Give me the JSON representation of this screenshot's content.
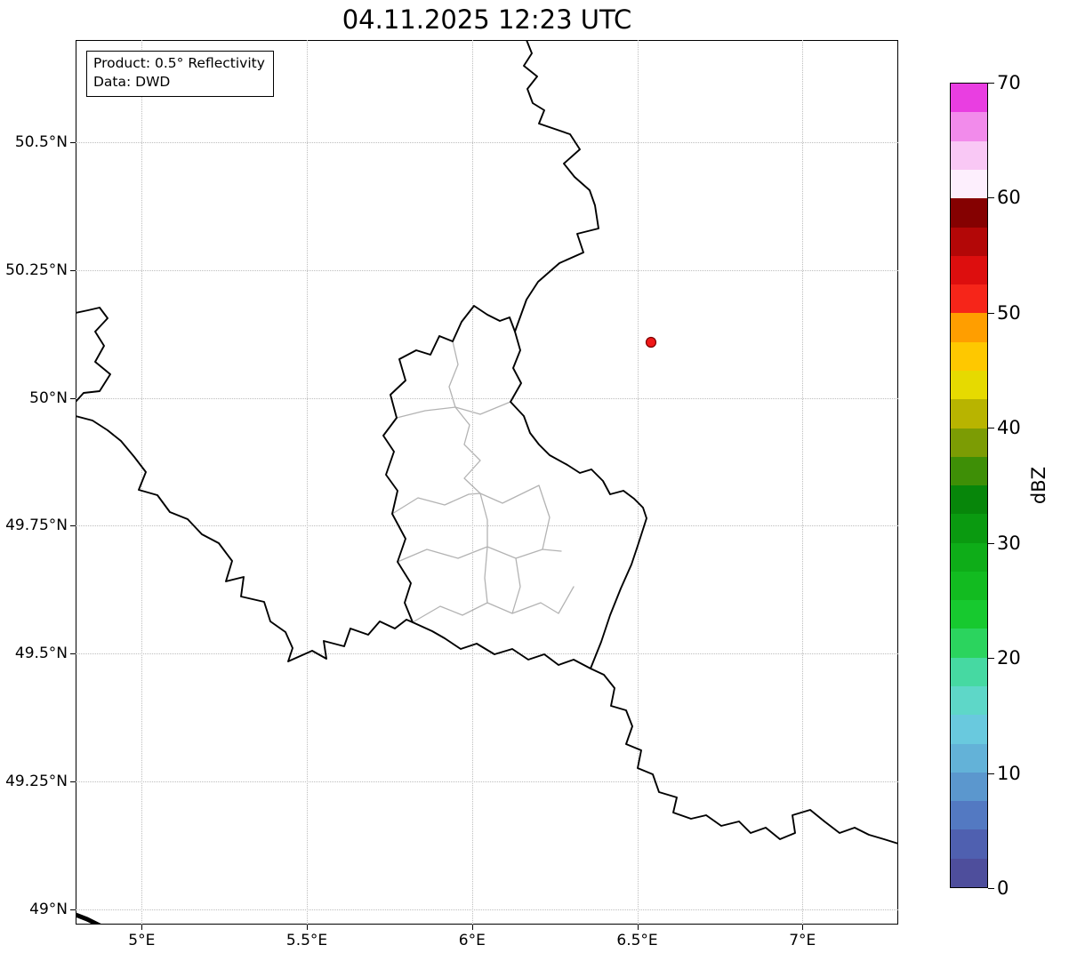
{
  "title": "04.11.2025 12:23 UTC",
  "annotation": {
    "product": "Product: 0.5° Reflectivity",
    "data_source": "Data: DWD"
  },
  "axes": {
    "xlim": [
      4.8,
      7.29
    ],
    "ylim": [
      48.97,
      50.7
    ],
    "x_ticks": [
      {
        "value": 5.0,
        "label": "5°E"
      },
      {
        "value": 5.5,
        "label": "5.5°E"
      },
      {
        "value": 6.0,
        "label": "6°E"
      },
      {
        "value": 6.5,
        "label": "6.5°E"
      },
      {
        "value": 7.0,
        "label": "7°E"
      }
    ],
    "y_ticks": [
      {
        "value": 50.5,
        "label": "50.5°N"
      },
      {
        "value": 50.25,
        "label": "50.25°N"
      },
      {
        "value": 50.0,
        "label": "50°N"
      },
      {
        "value": 49.75,
        "label": "49.75°N"
      },
      {
        "value": 49.5,
        "label": "49.5°N"
      },
      {
        "value": 49.25,
        "label": "49.25°N"
      },
      {
        "value": 49.0,
        "label": "49°N"
      }
    ]
  },
  "colorbar": {
    "label": "dBZ",
    "min": 0,
    "max": 70,
    "ticks": [
      {
        "value": 0,
        "label": "0"
      },
      {
        "value": 10,
        "label": "10"
      },
      {
        "value": 20,
        "label": "20"
      },
      {
        "value": 30,
        "label": "30"
      },
      {
        "value": 40,
        "label": "40"
      },
      {
        "value": 50,
        "label": "50"
      },
      {
        "value": 60,
        "label": "60"
      },
      {
        "value": 70,
        "label": "70"
      }
    ],
    "colors": [
      "#4e4e9c",
      "#4f60b0",
      "#5379c2",
      "#5b97ce",
      "#63b2d8",
      "#69c9de",
      "#5ed7c8",
      "#46d9a2",
      "#2bd45e",
      "#17c92f",
      "#12bb20",
      "#0ead18",
      "#0a9a10",
      "#07860a",
      "#3e8f06",
      "#7c9c04",
      "#b8b400",
      "#e6da00",
      "#fec800",
      "#ff9e00",
      "#f62519",
      "#dd0e0e",
      "#b30707",
      "#850101",
      "#fdeffd",
      "#f9c8f5",
      "#f28beb",
      "#e93ee1"
    ]
  },
  "map": {
    "border_color": "#000000",
    "admin_border_color": "#b3b3b3",
    "marker_color": "#f01818",
    "marker_edge_color": "#7a0000"
  }
}
